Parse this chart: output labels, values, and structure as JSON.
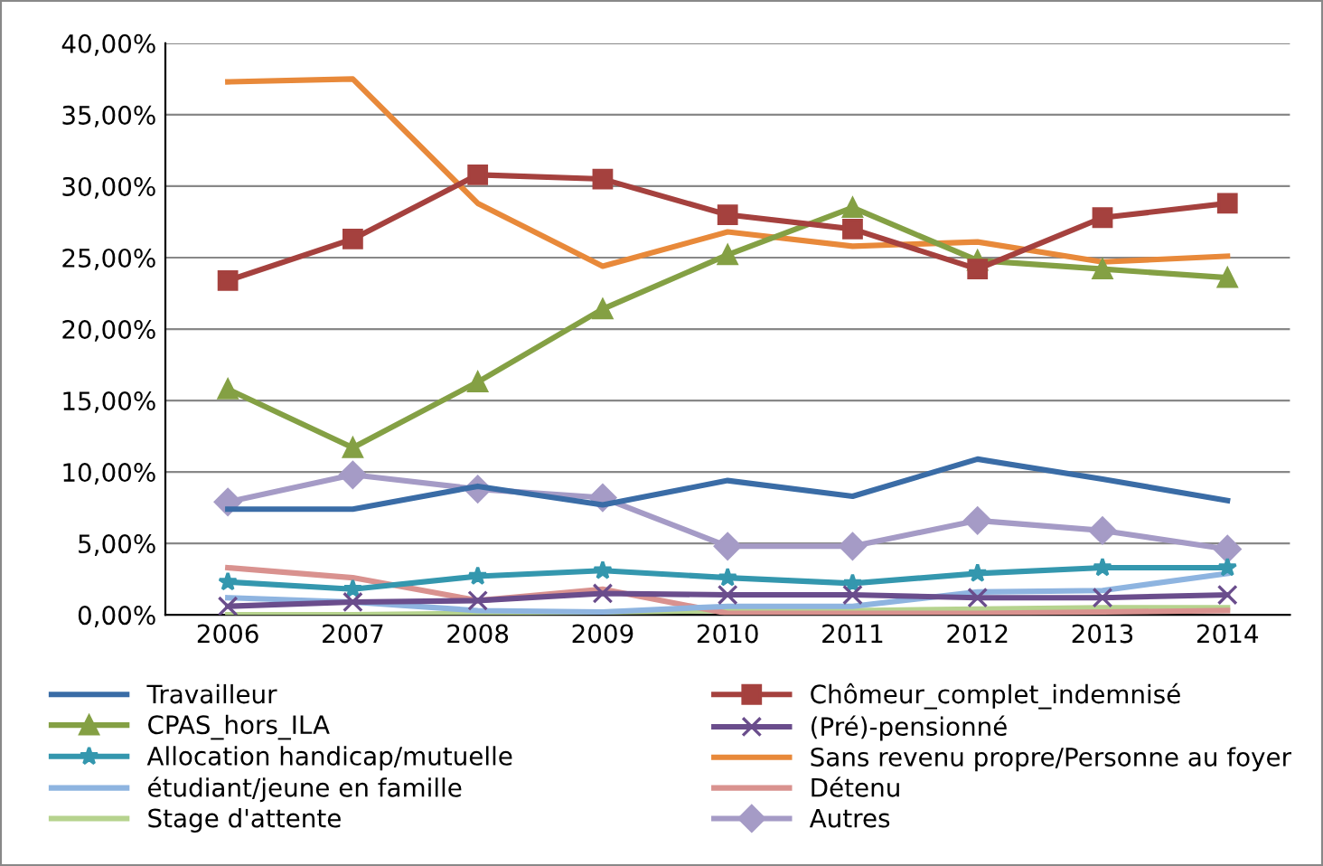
{
  "chart_data": {
    "type": "line",
    "categories": [
      "2006",
      "2007",
      "2008",
      "2009",
      "2010",
      "2011",
      "2012",
      "2013",
      "2014"
    ],
    "ylim": [
      0,
      40
    ],
    "yticks": [
      {
        "value": 0,
        "label": "0,00%"
      },
      {
        "value": 5,
        "label": "5,00%"
      },
      {
        "value": 10,
        "label": "10,00%"
      },
      {
        "value": 15,
        "label": "15,00%"
      },
      {
        "value": 20,
        "label": "20,00%"
      },
      {
        "value": 25,
        "label": "25,00%"
      },
      {
        "value": 30,
        "label": "30,00%"
      },
      {
        "value": 35,
        "label": "35,00%"
      },
      {
        "value": 40,
        "label": "40,00%"
      }
    ],
    "grid": "y",
    "legend": "bottom",
    "series": [
      {
        "name": "Travailleur",
        "color": "#3a6ca6",
        "marker": "none",
        "values": [
          7.4,
          7.4,
          9.0,
          7.7,
          9.4,
          8.3,
          10.9,
          9.5,
          8.0
        ]
      },
      {
        "name": "Chômeur_complet_indemnisé",
        "color": "#a5413e",
        "marker": "square",
        "values": [
          23.4,
          26.3,
          30.8,
          30.5,
          28.0,
          27.0,
          24.2,
          27.8,
          28.8
        ]
      },
      {
        "name": "CPAS_hors_ILA",
        "color": "#84a044",
        "marker": "triangle",
        "values": [
          15.8,
          11.7,
          16.3,
          21.4,
          25.2,
          28.5,
          24.8,
          24.2,
          23.6
        ]
      },
      {
        "name": "(Pré)-pensionné",
        "color": "#6a4d8c",
        "marker": "cross",
        "values": [
          0.6,
          0.9,
          1.0,
          1.5,
          1.4,
          1.4,
          1.2,
          1.2,
          1.4
        ]
      },
      {
        "name": "Allocation handicap/mutuelle",
        "color": "#3497ae",
        "marker": "star",
        "values": [
          2.3,
          1.8,
          2.7,
          3.1,
          2.6,
          2.2,
          2.9,
          3.3,
          3.3
        ]
      },
      {
        "name": "Sans revenu propre/Personne au foyer",
        "color": "#e8893a",
        "marker": "none",
        "values": [
          37.3,
          37.5,
          28.8,
          24.4,
          26.8,
          25.8,
          26.1,
          24.7,
          25.1
        ]
      },
      {
        "name": "étudiant/jeune en famille",
        "color": "#8eb4e0",
        "marker": "none",
        "values": [
          1.2,
          0.9,
          0.3,
          0.2,
          0.6,
          0.6,
          1.6,
          1.7,
          2.9
        ]
      },
      {
        "name": "Détenu",
        "color": "#d9928f",
        "marker": "none",
        "values": [
          3.3,
          2.6,
          1.0,
          1.8,
          0.1,
          0.1,
          0.1,
          0.2,
          0.3
        ]
      },
      {
        "name": "Stage d'attente",
        "color": "#b6d38e",
        "marker": "none",
        "values": [
          0.0,
          0.0,
          0.1,
          0.2,
          0.3,
          0.3,
          0.4,
          0.5,
          0.5
        ]
      },
      {
        "name": "Autres",
        "color": "#a59bc6",
        "marker": "diamond",
        "values": [
          7.9,
          9.8,
          8.8,
          8.2,
          4.8,
          4.8,
          6.6,
          5.9,
          4.6
        ]
      }
    ]
  }
}
